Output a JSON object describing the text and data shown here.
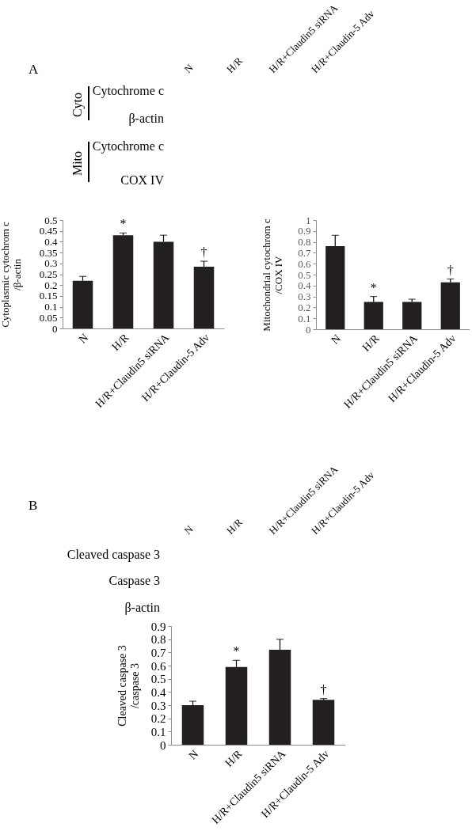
{
  "chart_data": [
    {
      "type": "other",
      "title": "A",
      "categories": [
        "N",
        "H/R",
        "H/R+Claudin5 siRNA",
        "H/R+Claudin-5 Adv"
      ],
      "y_categories": [
        "Cytochrome c",
        "β-actin",
        "Cytochrome c",
        "COX IV"
      ],
      "annotations": [
        "Cyto",
        "Mito"
      ]
    },
    {
      "type": "bar",
      "categories": [
        "N",
        "H/R",
        "H/R+Claudin5 siRNA",
        "H/R+Claudin-5 Adv"
      ],
      "values": [
        0.22,
        0.43,
        0.4,
        0.285
      ],
      "errors": [
        [
          0.22,
          0.24
        ],
        [
          0.43,
          0.44
        ],
        [
          0.4,
          0.43
        ],
        [
          0.285,
          0.31
        ]
      ],
      "color": "#231f20",
      "ylabel": "Cytoplasmic  cytochrom c\n/β-actin",
      "ylim": [
        0,
        0.5
      ],
      "yticks": [
        0,
        0.05,
        0.1,
        0.15,
        0.2,
        0.25,
        0.3,
        0.35,
        0.4,
        0.45,
        0.5
      ],
      "annotations": [
        {
          "text": "*",
          "x": "H/R",
          "y": 0.44
        },
        {
          "text": "†",
          "x": "H/R+Claudin-5 Adv",
          "y": 0.31
        }
      ]
    },
    {
      "type": "bar",
      "categories": [
        "N",
        "H/R",
        "H/R+Claudin5 siRNA",
        "H/R+Claudin-5 Adv"
      ],
      "values": [
        0.76,
        0.25,
        0.25,
        0.43
      ],
      "errors": [
        [
          0.76,
          0.86
        ],
        [
          0.25,
          0.3
        ],
        [
          0.25,
          0.275
        ],
        [
          0.43,
          0.46
        ]
      ],
      "color": "#231f20",
      "ylabel": "Mitochondrial  cytochrom c\n/COX IV",
      "ylim": [
        0,
        1
      ],
      "yticks": [
        0,
        0.1,
        0.2,
        0.3,
        0.4,
        0.5,
        0.6,
        0.7,
        0.8,
        0.9,
        1
      ],
      "annotations": [
        {
          "text": "*",
          "x": "H/R",
          "y": 0.3
        },
        {
          "text": "†",
          "x": "H/R+Claudin-5 Adv",
          "y": 0.46
        }
      ]
    },
    {
      "type": "other",
      "title": "B",
      "categories": [
        "N",
        "H/R",
        "H/R+Claudin5 siRNA",
        "H/R+Claudin-5 Adv"
      ],
      "y_categories": [
        "Cleaved caspase 3",
        "Caspase 3",
        "β-actin"
      ]
    },
    {
      "type": "bar",
      "categories": [
        "N",
        "H/R",
        "H/R+Claudin5 siRNA",
        "H/R+Claudin-5 Adv"
      ],
      "values": [
        0.3,
        0.59,
        0.72,
        0.34
      ],
      "errors": [
        [
          0.3,
          0.33
        ],
        [
          0.59,
          0.64
        ],
        [
          0.72,
          0.8
        ],
        [
          0.34,
          0.35
        ]
      ],
      "color": "#231f20",
      "ylabel": "Cleaved caspase 3\n/caspase 3",
      "ylim": [
        0,
        0.9
      ],
      "yticks": [
        0,
        0.1,
        0.2,
        0.3,
        0.4,
        0.5,
        0.6,
        0.7,
        0.8,
        0.9
      ],
      "annotations": [
        {
          "text": "*",
          "x": "H/R",
          "y": 0.64
        },
        {
          "text": "†",
          "x": "H/R+Claudin-5 Adv",
          "y": 0.35
        }
      ]
    }
  ]
}
